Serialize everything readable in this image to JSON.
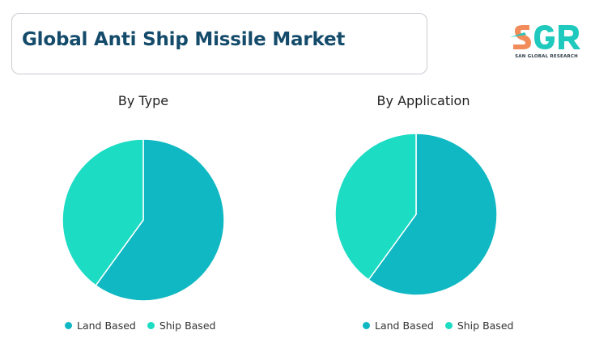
{
  "header": {
    "title": "Global Anti Ship Missile Market"
  },
  "logo": {
    "mark_text": "SGR",
    "tagline": "SAN GLOBAL RESEARCH",
    "colors": {
      "S": "#f28c5a",
      "G": "#20c9bd",
      "R": "#20c9bd"
    }
  },
  "colors": {
    "land_based": "#0fb8c2",
    "ship_based": "#1ddcc4",
    "title": "#144b6b"
  },
  "chart_data": [
    {
      "type": "pie",
      "title": "By Type",
      "series": [
        {
          "name": "Land Based",
          "value": 60,
          "color": "#0fb8c2"
        },
        {
          "name": "Ship Based",
          "value": 40,
          "color": "#1ddcc4"
        }
      ],
      "legend": "bottom"
    },
    {
      "type": "pie",
      "title": "By Application",
      "series": [
        {
          "name": "Land Based",
          "value": 60,
          "color": "#0fb8c2"
        },
        {
          "name": "Ship Based",
          "value": 40,
          "color": "#1ddcc4"
        }
      ],
      "legend": "bottom"
    }
  ]
}
